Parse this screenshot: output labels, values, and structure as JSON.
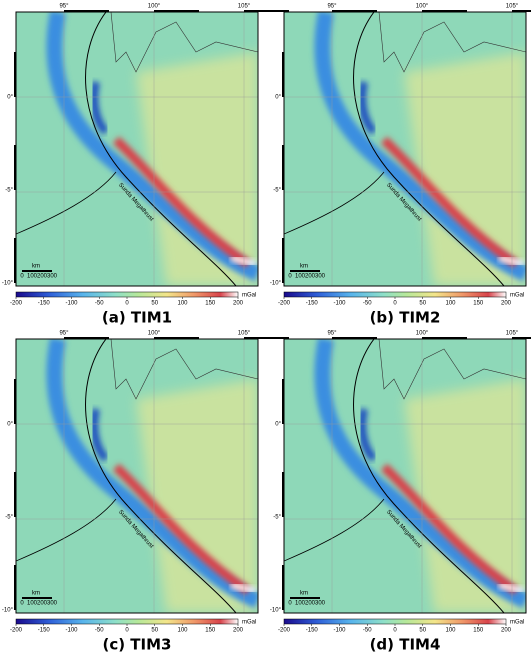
{
  "panels": [
    {
      "caption": "(a) TIM1"
    },
    {
      "caption": "(b) TIM2"
    },
    {
      "caption": "(c) TIM3"
    },
    {
      "caption": "(d) TIM4"
    }
  ],
  "map": {
    "lon_labels": [
      "95°",
      "100°",
      "105°"
    ],
    "lat_labels": [
      "0°",
      "-5°",
      "-10°"
    ],
    "trench_label": "Sunda Megathrust",
    "scale": {
      "unit": "km",
      "ticks": [
        0,
        100,
        200,
        300
      ]
    }
  },
  "colorbar": {
    "lim": [
      -200,
      200
    ],
    "ticks": [
      -200,
      -150,
      -100,
      -50,
      0,
      50,
      100,
      150,
      200
    ],
    "unit": "mGal"
  }
}
